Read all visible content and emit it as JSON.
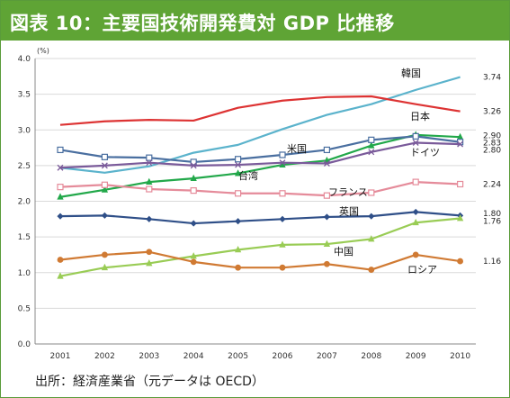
{
  "title": "図表 10：主要国技術開発費対 GDP 比推移",
  "source": "出所：経済産業省（元データは OECD）",
  "chart_data": {
    "type": "line",
    "title": "図表 10：主要国技術開発費対 GDP 比推移",
    "ylabel": "(%)",
    "xlabel": "",
    "ylim": [
      0.0,
      4.0
    ],
    "yticks": [
      "0.0",
      "0.5",
      "1.0",
      "1.5",
      "2.0",
      "2.5",
      "3.0",
      "3.5",
      "4.0"
    ],
    "x": [
      "2001",
      "2002",
      "2003",
      "2004",
      "2005",
      "2006",
      "2007",
      "2008",
      "2009",
      "2010"
    ],
    "grid": true,
    "legend": "inline labels",
    "series": [
      {
        "name": "韓国",
        "color": "#5bb3cc",
        "marker": "none",
        "end_label": "3.74",
        "values": [
          2.47,
          2.4,
          2.49,
          2.68,
          2.79,
          3.01,
          3.21,
          3.36,
          3.56,
          3.74
        ]
      },
      {
        "name": "日本",
        "color": "#dd3333",
        "marker": "none",
        "end_label": "3.26",
        "values": [
          3.07,
          3.12,
          3.14,
          3.13,
          3.31,
          3.41,
          3.46,
          3.47,
          3.36,
          3.26
        ]
      },
      {
        "name": "台湾",
        "color": "#22a84a",
        "marker": "triangle",
        "end_label": "2.90",
        "values": [
          2.06,
          2.16,
          2.27,
          2.32,
          2.39,
          2.51,
          2.57,
          2.78,
          2.93,
          2.9
        ]
      },
      {
        "name": "米国",
        "color": "#4a6fa0",
        "marker": "square",
        "end_label": "2.83",
        "values": [
          2.72,
          2.62,
          2.61,
          2.55,
          2.59,
          2.65,
          2.72,
          2.86,
          2.91,
          2.83
        ]
      },
      {
        "name": "ドイツ",
        "color": "#7a5a9a",
        "marker": "x",
        "end_label": "2.80",
        "values": [
          2.47,
          2.5,
          2.54,
          2.5,
          2.51,
          2.54,
          2.53,
          2.69,
          2.82,
          2.8
        ]
      },
      {
        "name": "フランス",
        "color": "#e58b9a",
        "marker": "square",
        "end_label": "2.24",
        "values": [
          2.2,
          2.23,
          2.17,
          2.15,
          2.11,
          2.11,
          2.08,
          2.12,
          2.27,
          2.24
        ]
      },
      {
        "name": "英国",
        "color": "#2f4f88",
        "marker": "diamond",
        "end_label": "1.80",
        "values": [
          1.79,
          1.8,
          1.75,
          1.69,
          1.72,
          1.75,
          1.78,
          1.79,
          1.85,
          1.8
        ]
      },
      {
        "name": "中国",
        "color": "#99cc55",
        "marker": "triangle",
        "end_label": "1.76",
        "values": [
          0.95,
          1.07,
          1.13,
          1.23,
          1.32,
          1.39,
          1.4,
          1.47,
          1.7,
          1.76
        ]
      },
      {
        "name": "ロシア",
        "color": "#d07a33",
        "marker": "circle",
        "end_label": "1.16",
        "values": [
          1.18,
          1.25,
          1.29,
          1.15,
          1.07,
          1.07,
          1.12,
          1.04,
          1.25,
          1.16
        ]
      }
    ]
  }
}
